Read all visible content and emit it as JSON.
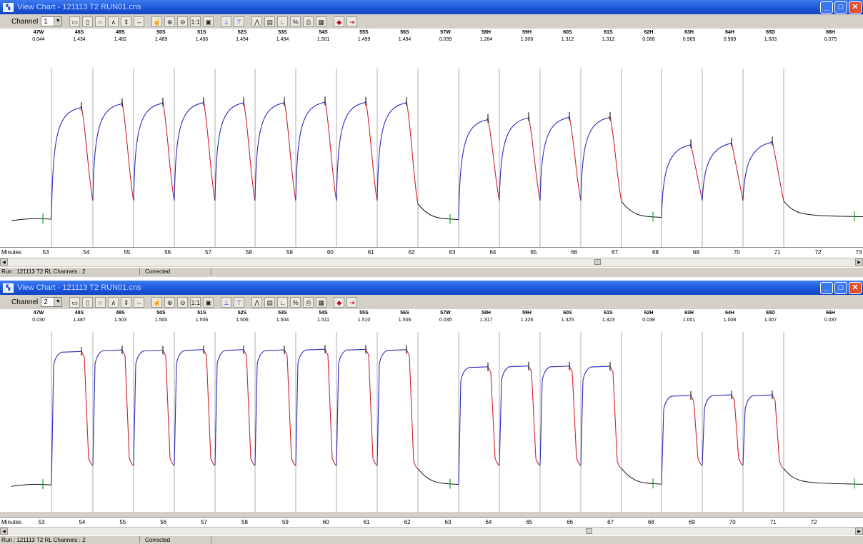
{
  "windows": [
    {
      "title": "View Chart - 121113 T2 RUN01.cns",
      "channel_label": "Channel",
      "channel_value": "1",
      "segments": [
        {
          "name": "47W",
          "value": "0.044"
        },
        {
          "name": "46S",
          "value": "1.434"
        },
        {
          "name": "49S",
          "value": "1.482"
        },
        {
          "name": "50S",
          "value": "1.489"
        },
        {
          "name": "51S",
          "value": "1.496"
        },
        {
          "name": "52S",
          "value": "1.494"
        },
        {
          "name": "53S",
          "value": "1.494"
        },
        {
          "name": "54S",
          "value": "1.501"
        },
        {
          "name": "55S",
          "value": "1.499"
        },
        {
          "name": "56S",
          "value": "1.494"
        },
        {
          "name": "57W",
          "value": "0.039"
        },
        {
          "name": "58H",
          "value": "1.284"
        },
        {
          "name": "59H",
          "value": "1.306"
        },
        {
          "name": "60S",
          "value": "1.312"
        },
        {
          "name": "61S",
          "value": "1.312"
        },
        {
          "name": "62H",
          "value": "0.066"
        },
        {
          "name": "63H",
          "value": "0.969"
        },
        {
          "name": "64H",
          "value": "0.989"
        },
        {
          "name": "65D",
          "value": "1.003"
        },
        {
          "name": "66H",
          "value": "0.075"
        }
      ],
      "minutes_label": "Minutes",
      "minute_ticks": [
        "53",
        "54",
        "55",
        "56",
        "57",
        "58",
        "59",
        "60",
        "61",
        "62",
        "63",
        "64",
        "65",
        "66",
        "67",
        "68",
        "69",
        "70",
        "71",
        "72",
        "73"
      ],
      "status_run": "Run : 121113 T2 RL Channels : 2",
      "status_state": "Corrected"
    },
    {
      "title": "View Chart - 121113 T2 RUN01.cns",
      "channel_label": "Channel",
      "channel_value": "2",
      "segments": [
        {
          "name": "47W",
          "value": "0.030"
        },
        {
          "name": "48S",
          "value": "1.487"
        },
        {
          "name": "49S",
          "value": "1.503"
        },
        {
          "name": "50S",
          "value": "1.500"
        },
        {
          "name": "51S",
          "value": "1.506"
        },
        {
          "name": "52S",
          "value": "1.506"
        },
        {
          "name": "53S",
          "value": "1.504"
        },
        {
          "name": "54S",
          "value": "1.511"
        },
        {
          "name": "55S",
          "value": "1.510"
        },
        {
          "name": "56S",
          "value": "1.506"
        },
        {
          "name": "57W",
          "value": "0.035"
        },
        {
          "name": "58H",
          "value": "1.317"
        },
        {
          "name": "59H",
          "value": "1.326"
        },
        {
          "name": "60S",
          "value": "1.325"
        },
        {
          "name": "61S",
          "value": "1.323"
        },
        {
          "name": "62H",
          "value": "0.038"
        },
        {
          "name": "63H",
          "value": "1.001"
        },
        {
          "name": "64H",
          "value": "1.008"
        },
        {
          "name": "65D",
          "value": "1.007"
        },
        {
          "name": "66H",
          "value": "0.037"
        }
      ],
      "minutes_label": "Minutes",
      "minute_ticks": [
        "53",
        "54",
        "55",
        "56",
        "57",
        "58",
        "59",
        "60",
        "61",
        "62",
        "63",
        "64",
        "65",
        "66",
        "67",
        "68",
        "69",
        "70",
        "71",
        "72"
      ],
      "status_run": "Run : 121113 T2 RL Channels : 2",
      "status_state": "Corrected"
    }
  ],
  "colors": {
    "rise": "#2b2bbf",
    "fall": "#d02030",
    "base": "#111111",
    "marker_start": "#1a9a30",
    "marker_end": "#222222",
    "gridline": "#9a9a9a"
  },
  "icons": [
    "open-folder-icon",
    "blank-page-icon",
    "peak-icon",
    "valley-icon",
    "nudge-icon",
    "hand-icon",
    "zoom-in-icon",
    "zoom-out-icon",
    "actual-size-icon",
    "fit-icon",
    "baseline-icon",
    "plateau-icon",
    "multi-peak-icon",
    "table-icon",
    "axis-icon",
    "percent-icon",
    "print-icon",
    "save-icon",
    "eraser-icon",
    "exit-icon"
  ]
}
